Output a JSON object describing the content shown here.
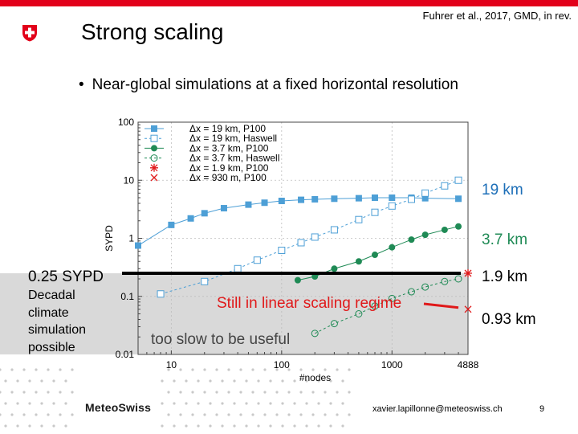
{
  "header": {
    "title": "Strong scaling",
    "citation": "Fuhrer et al., 2017, GMD, in rev.",
    "accent_color": "#e2001a"
  },
  "bullet": {
    "marker": "•",
    "text": "Near-global simulations at a fixed horizontal resolution"
  },
  "annotations": {
    "threshold_label": "0.25 SYPD",
    "decadal_note": [
      "Decadal",
      "climate",
      "simulation",
      "possible"
    ],
    "regime_note": "Still in linear scaling regime",
    "too_slow_note": "too slow to be useful",
    "res_labels": [
      "19 km",
      "3.7 km",
      "1.9 km",
      "0.93 km"
    ]
  },
  "footer": {
    "brand": "MeteoSwiss",
    "email": "xavier.lapillonne@meteoswiss.ch",
    "page_number": "9"
  },
  "chart_data": {
    "type": "scatter",
    "xscale": "log",
    "yscale": "log",
    "xlabel": "#nodes",
    "ylabel": "SYPD",
    "xlim": [
      5,
      4888
    ],
    "ylim": [
      0.01,
      100
    ],
    "xticks": [
      10,
      100,
      1000,
      4888
    ],
    "xtick_labels": [
      "10",
      "100",
      "1000",
      "4888"
    ],
    "yticks": [
      0.01,
      0.1,
      1,
      10,
      100
    ],
    "ytick_labels": [
      "0.01",
      "0.1",
      "1",
      "10",
      "100"
    ],
    "threshold_sypd": 0.25,
    "legend_position": "top-left",
    "colors": {
      "blue": "#4d9fd6",
      "green": "#1f8a55",
      "red": "#e0191a",
      "shade": "#d9d9d9",
      "grid": "#bdbdbd"
    },
    "series": [
      {
        "name": "Δx = 19 km, P100",
        "color": "#4d9fd6",
        "marker": "square-filled",
        "line": "solid",
        "x": [
          5,
          10,
          15,
          20,
          30,
          50,
          70,
          100,
          150,
          200,
          300,
          500,
          700,
          1000,
          1500,
          2000,
          4000
        ],
        "y": [
          0.75,
          1.7,
          2.2,
          2.7,
          3.3,
          3.8,
          4.1,
          4.4,
          4.6,
          4.7,
          4.8,
          4.9,
          5.0,
          5.0,
          5.0,
          4.9,
          4.8
        ]
      },
      {
        "name": "Δx = 19 km, Haswell",
        "color": "#4d9fd6",
        "marker": "square-open",
        "line": "dashed",
        "x": [
          8,
          20,
          40,
          60,
          100,
          150,
          200,
          300,
          500,
          700,
          1000,
          1500,
          2000,
          3000,
          4000
        ],
        "y": [
          0.11,
          0.18,
          0.3,
          0.42,
          0.62,
          0.84,
          1.05,
          1.4,
          2.1,
          2.8,
          3.6,
          4.7,
          6.0,
          8.0,
          10.0
        ]
      },
      {
        "name": "Δx = 3.7 km, P100",
        "color": "#1f8a55",
        "marker": "circle-filled",
        "line": "solid",
        "x": [
          140,
          200,
          300,
          500,
          700,
          1000,
          1500,
          2000,
          3000,
          4000
        ],
        "y": [
          0.19,
          0.22,
          0.3,
          0.4,
          0.52,
          0.7,
          0.95,
          1.15,
          1.4,
          1.6
        ]
      },
      {
        "name": "Δx = 3.7 km, Haswell",
        "color": "#1f8a55",
        "marker": "circle-open",
        "line": "dashed",
        "x": [
          200,
          300,
          500,
          700,
          1000,
          1500,
          2000,
          3000,
          4000
        ],
        "y": [
          0.023,
          0.034,
          0.05,
          0.068,
          0.092,
          0.12,
          0.145,
          0.18,
          0.2
        ]
      },
      {
        "name": "Δx = 1.9 km, P100",
        "color": "#e0191a",
        "marker": "star",
        "line": "none",
        "x": [
          4888
        ],
        "y": [
          0.25
        ]
      },
      {
        "name": "Δx = 930 m, P100",
        "color": "#e0191a",
        "marker": "x",
        "line": "none",
        "x": [
          4888
        ],
        "y": [
          0.06
        ]
      }
    ]
  }
}
